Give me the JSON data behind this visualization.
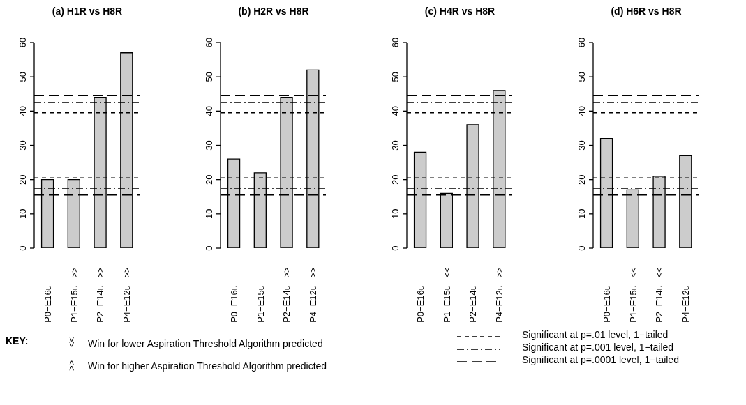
{
  "chart_data": [
    {
      "type": "bar",
      "title": "(a) H1R vs H8R",
      "categories": [
        "P0−E16u",
        "P1−E15u",
        "P2−E14u",
        "P4−E12u"
      ],
      "values": [
        20,
        20,
        44,
        57
      ],
      "color": "#cccccc",
      "ylim": [
        0,
        60
      ],
      "yticks": [
        0,
        10,
        20,
        30,
        40,
        50,
        60
      ],
      "ref_lines": [
        {
          "axis": "y",
          "value": 20.5,
          "line_style": "dashed"
        },
        {
          "axis": "y",
          "value": 17.5,
          "line_style": "dashdot"
        },
        {
          "axis": "y",
          "value": 15.5,
          "line_style": "longdash"
        },
        {
          "axis": "y",
          "value": 39.5,
          "line_style": "dashed"
        },
        {
          "axis": "y",
          "value": 42.5,
          "line_style": "dashdot"
        },
        {
          "axis": "y",
          "value": 44.5,
          "line_style": "longdash"
        }
      ],
      "annotations": [
        null,
        ">>",
        ">>",
        ">>"
      ]
    },
    {
      "type": "bar",
      "title": "(b) H2R vs H8R",
      "categories": [
        "P0−E16u",
        "P1−E15u",
        "P2−E14u",
        "P4−E12u"
      ],
      "values": [
        26,
        22,
        44,
        52
      ],
      "color": "#cccccc",
      "ylim": [
        0,
        60
      ],
      "yticks": [
        0,
        10,
        20,
        30,
        40,
        50,
        60
      ],
      "ref_lines": [
        {
          "axis": "y",
          "value": 20.5,
          "line_style": "dashed"
        },
        {
          "axis": "y",
          "value": 17.5,
          "line_style": "dashdot"
        },
        {
          "axis": "y",
          "value": 15.5,
          "line_style": "longdash"
        },
        {
          "axis": "y",
          "value": 39.5,
          "line_style": "dashed"
        },
        {
          "axis": "y",
          "value": 42.5,
          "line_style": "dashdot"
        },
        {
          "axis": "y",
          "value": 44.5,
          "line_style": "longdash"
        }
      ],
      "annotations": [
        null,
        null,
        ">>",
        ">>"
      ]
    },
    {
      "type": "bar",
      "title": "(c) H4R vs H8R",
      "categories": [
        "P0−E16u",
        "P1−E15u",
        "P2−E14u",
        "P4−E12u"
      ],
      "values": [
        28,
        16,
        36,
        46
      ],
      "color": "#cccccc",
      "ylim": [
        0,
        60
      ],
      "yticks": [
        0,
        10,
        20,
        30,
        40,
        50,
        60
      ],
      "ref_lines": [
        {
          "axis": "y",
          "value": 20.5,
          "line_style": "dashed"
        },
        {
          "axis": "y",
          "value": 17.5,
          "line_style": "dashdot"
        },
        {
          "axis": "y",
          "value": 15.5,
          "line_style": "longdash"
        },
        {
          "axis": "y",
          "value": 39.5,
          "line_style": "dashed"
        },
        {
          "axis": "y",
          "value": 42.5,
          "line_style": "dashdot"
        },
        {
          "axis": "y",
          "value": 44.5,
          "line_style": "longdash"
        }
      ],
      "annotations": [
        null,
        "<<",
        null,
        ">>"
      ]
    },
    {
      "type": "bar",
      "title": "(d) H6R vs H8R",
      "categories": [
        "P0−E16u",
        "P1−E15u",
        "P2−E14u",
        "P4−E12u"
      ],
      "values": [
        32,
        17,
        21,
        27
      ],
      "color": "#cccccc",
      "ylim": [
        0,
        60
      ],
      "yticks": [
        0,
        10,
        20,
        30,
        40,
        50,
        60
      ],
      "ref_lines": [
        {
          "axis": "y",
          "value": 20.5,
          "line_style": "dashed"
        },
        {
          "axis": "y",
          "value": 17.5,
          "line_style": "dashdot"
        },
        {
          "axis": "y",
          "value": 15.5,
          "line_style": "longdash"
        },
        {
          "axis": "y",
          "value": 39.5,
          "line_style": "dashed"
        },
        {
          "axis": "y",
          "value": 42.5,
          "line_style": "dashdot"
        },
        {
          "axis": "y",
          "value": 44.5,
          "line_style": "longdash"
        }
      ],
      "annotations": [
        null,
        "<<",
        "<<",
        null
      ]
    },
    {
      "type": "other",
      "annotations": [
        "KEY:",
        "<<",
        "Win for lower Aspiration Threshold Algorithm predicted",
        ">>",
        "Win for higher Aspiration Threshold Algorithm predicted",
        "Significant at p=.01 level, 1−tailed",
        "Significant at p=.001 level, 1−tailed",
        "Significant at p=.0001 level, 1−tailed"
      ]
    }
  ]
}
